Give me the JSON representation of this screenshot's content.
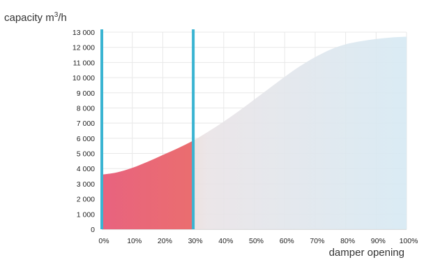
{
  "chart_data": {
    "type": "area",
    "ylabel": "capacity m",
    "ylabel_sup": "3",
    "ylabel_suffix": "/h",
    "xlabel": "damper opening",
    "y_ticks": [
      "0",
      "1 000",
      "2 000",
      "3 000",
      "4 000",
      "5 000",
      "6 000",
      "7 000",
      "8 000",
      "9 000",
      "10 000",
      "11 000",
      "12 000",
      "13 000"
    ],
    "y_tick_values": [
      0,
      1000,
      2000,
      3000,
      4000,
      5000,
      6000,
      7000,
      8000,
      9000,
      10000,
      11000,
      12000,
      13000
    ],
    "x_ticks": [
      "0%",
      "10%",
      "20%",
      "30%",
      "40%",
      "50%",
      "60%",
      "70%",
      "80%",
      "90%",
      "100%"
    ],
    "x_tick_values": [
      0,
      10,
      20,
      30,
      40,
      50,
      60,
      70,
      80,
      90,
      100
    ],
    "xlim": [
      0,
      100
    ],
    "ylim": [
      0,
      13000
    ],
    "grid": true,
    "series": [
      {
        "x": [
          0,
          5,
          10,
          15,
          20,
          25,
          30,
          35,
          40,
          45,
          50,
          55,
          60,
          65,
          70,
          75,
          80,
          85,
          90,
          95,
          100
        ],
        "values": [
          3600,
          3750,
          4050,
          4450,
          4900,
          5350,
          5850,
          6450,
          7100,
          7800,
          8550,
          9300,
          10050,
          10750,
          11350,
          11850,
          12200,
          12400,
          12550,
          12650,
          12700
        ]
      }
    ],
    "highlight_range": [
      0,
      30
    ],
    "colors": {
      "highlight_start": "#e8637f",
      "highlight_end": "#f0864a",
      "fade_mid": "#e7e2e6",
      "fade_end": "#d6e9f3",
      "marker_line": "#3ab4d2",
      "grid": "#e8e8e8",
      "axis": "#bbbbbb"
    }
  }
}
